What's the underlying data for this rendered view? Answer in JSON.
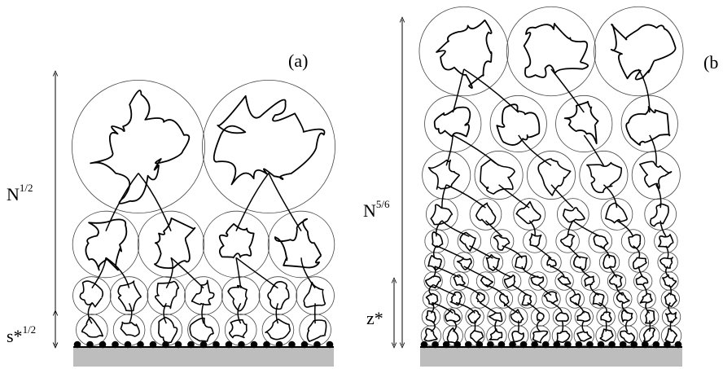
{
  "panels": [
    {
      "id": "a",
      "label": "(a)",
      "height_label": {
        "base": "N",
        "exp": "1/2"
      },
      "grid_label": {
        "base": "s*",
        "exp": "1/2"
      },
      "rows": [
        {
          "count": 7
        },
        {
          "count": 7
        },
        {
          "count": 4
        },
        {
          "count": 2
        }
      ],
      "anchors": 21
    },
    {
      "id": "b",
      "label": "(b",
      "height_label": {
        "base": "N",
        "exp": "5/6"
      },
      "grid_label": {
        "base": "z*",
        "exp": ""
      },
      "rows": [
        {
          "count": 12
        },
        {
          "count": 12
        },
        {
          "count": 11
        },
        {
          "count": 10
        },
        {
          "count": 9
        },
        {
          "count": 8
        },
        {
          "count": 6
        },
        {
          "count": 5
        },
        {
          "count": 4
        },
        {
          "count": 3
        }
      ],
      "anchors": 24
    }
  ],
  "colors": {
    "ink": "#000000",
    "substrate": "#bdbdbd",
    "circle": "#444444"
  }
}
